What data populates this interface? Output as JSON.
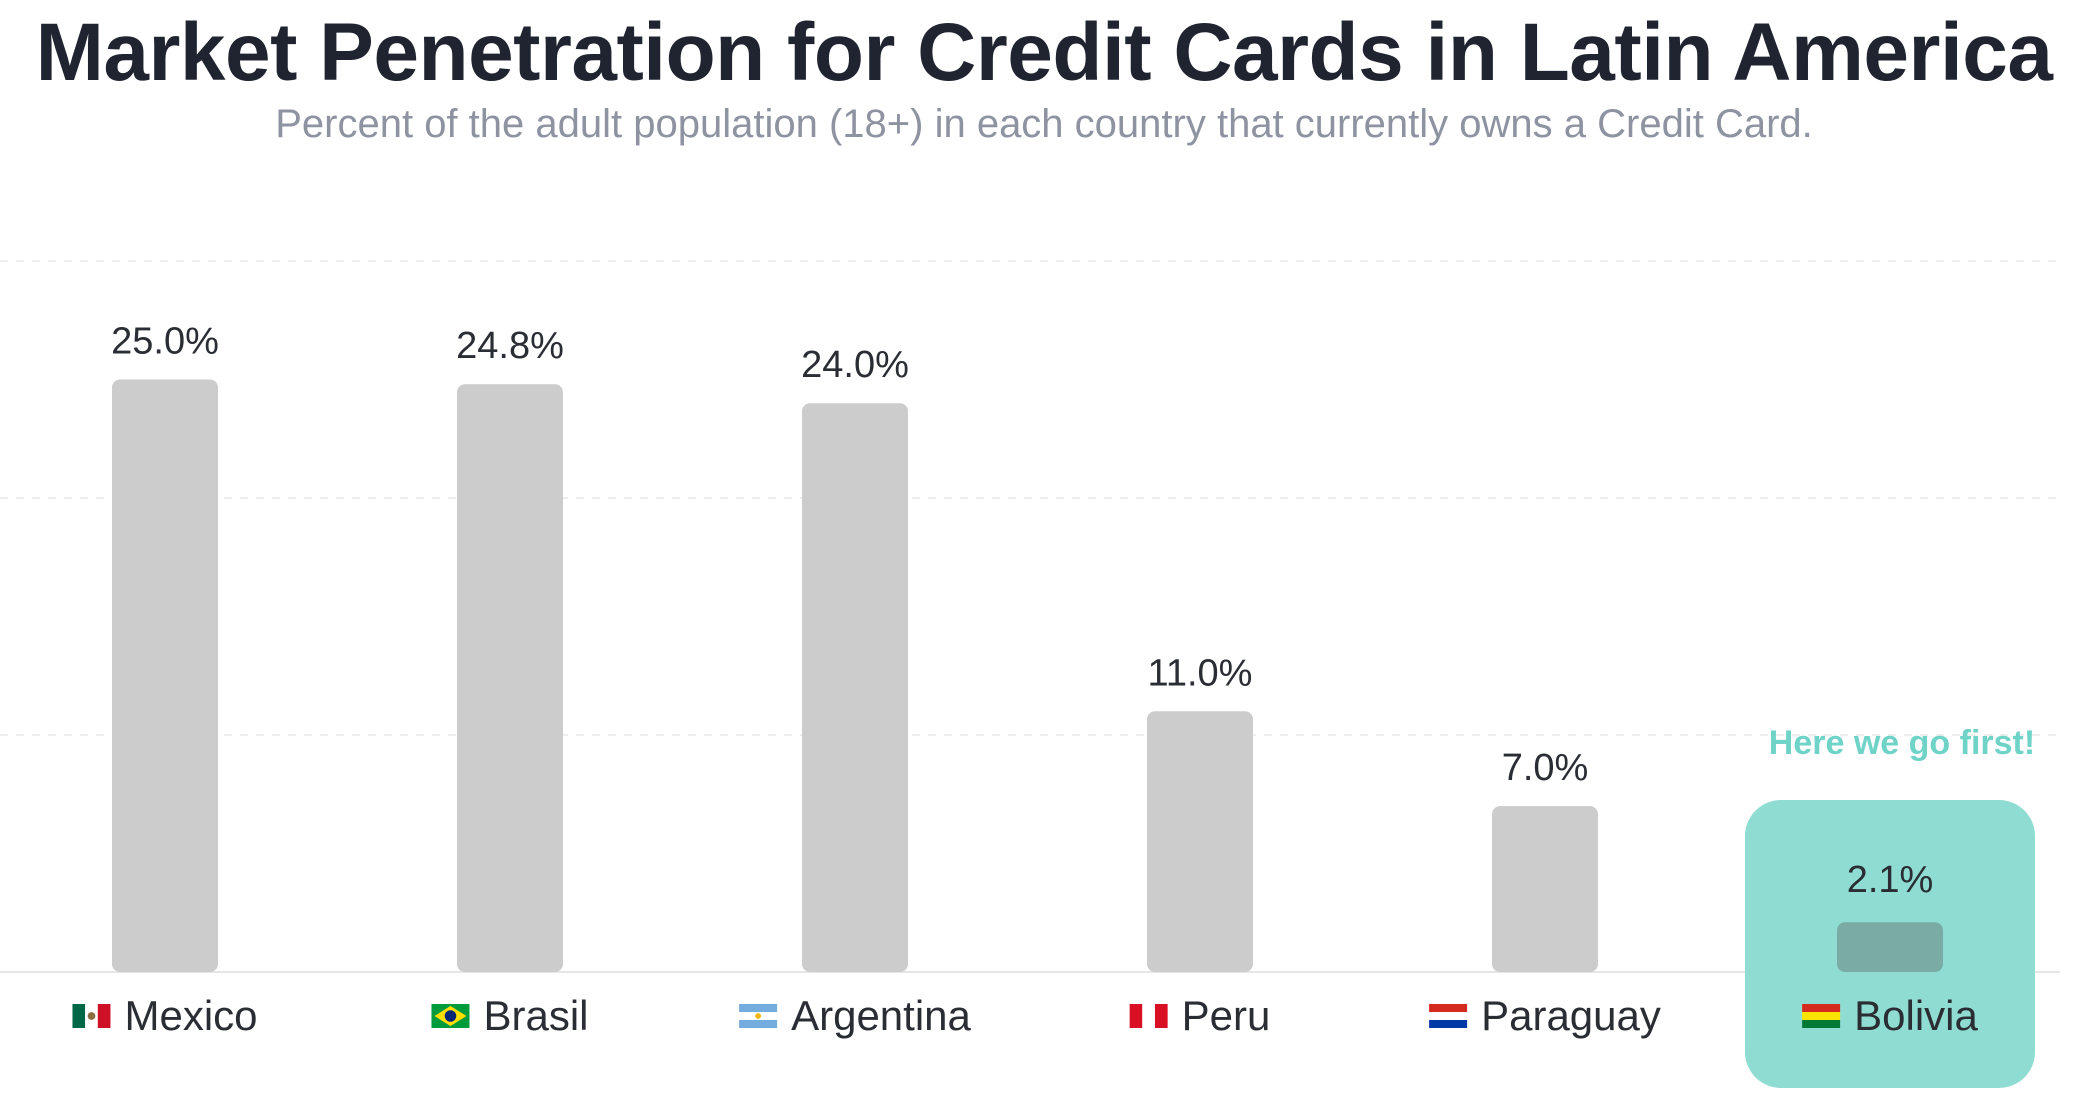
{
  "header": {
    "title": "Market Penetration for Credit Cards in Latin America",
    "subtitle": "Percent of the adult population (18+) in each country that currently owns a Credit Card."
  },
  "colors": {
    "bar": "#cccccc",
    "highlight_bg": "#8fdcd2",
    "highlight_bar": "#7aaba5",
    "callout_text": "#6fd3c8",
    "grid": "#eeeeee"
  },
  "chart_data": {
    "type": "bar",
    "title": "Market Penetration for Credit Cards in Latin America",
    "subtitle": "Percent of the adult population (18+) in each country that currently owns a Credit Card.",
    "categories": [
      "Mexico",
      "Brasil",
      "Argentina",
      "Peru",
      "Paraguay",
      "Bolivia"
    ],
    "flags": [
      "mexico-flag-icon",
      "brazil-flag-icon",
      "argentina-flag-icon",
      "peru-flag-icon",
      "paraguay-flag-icon",
      "bolivia-flag-icon"
    ],
    "values": [
      25.0,
      24.8,
      24.0,
      11.0,
      7.0,
      2.1
    ],
    "value_labels": [
      "25.0%",
      "24.8%",
      "24.0%",
      "11.0%",
      "7.0%",
      "2.1%"
    ],
    "ylim": [
      0,
      30
    ],
    "grid": true,
    "highlight": {
      "category": "Bolivia",
      "annotation": "Here we go first!"
    },
    "xlabel": "",
    "ylabel": ""
  }
}
